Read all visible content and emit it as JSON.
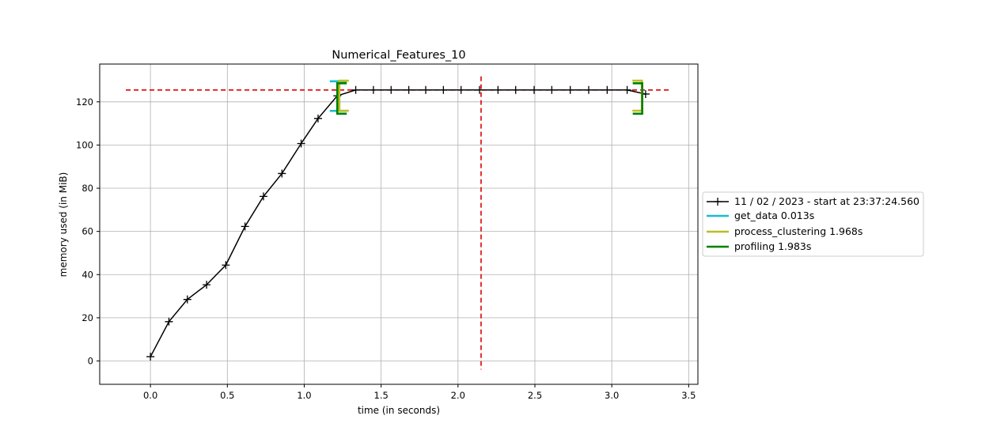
{
  "chart_data": {
    "type": "line",
    "title": "Numerical_Features_10",
    "xlabel": "time (in seconds)",
    "ylabel": "memory used (in MiB)",
    "xlim": [
      -0.33,
      3.56
    ],
    "ylim": [
      -10.8,
      137.5
    ],
    "xticks": [
      0.0,
      0.5,
      1.0,
      1.5,
      2.0,
      2.5,
      3.0,
      3.5
    ],
    "xtick_labels": [
      "0.0",
      "0.5",
      "1.0",
      "1.5",
      "2.0",
      "2.5",
      "3.0",
      "3.5"
    ],
    "yticks": [
      0,
      20,
      40,
      60,
      80,
      100,
      120
    ],
    "ytick_labels": [
      "0",
      "20",
      "40",
      "60",
      "80",
      "100",
      "120"
    ],
    "grid": true,
    "legend_position": "outside-right",
    "series": [
      {
        "name": "11 / 02 / 2023 - start at 23:37:24.560",
        "color": "#000000",
        "marker": "+",
        "x": [
          0.0,
          0.12,
          0.24,
          0.365,
          0.49,
          0.615,
          0.735,
          0.855,
          0.98,
          1.09,
          1.215,
          1.335,
          1.45,
          1.565,
          1.68,
          1.79,
          1.905,
          2.02,
          2.14,
          2.26,
          2.375,
          2.495,
          2.61,
          2.73,
          2.85,
          2.97,
          3.1,
          3.22
        ],
        "y": [
          2.0,
          18.2,
          28.5,
          35.3,
          44.4,
          62.3,
          76.2,
          86.8,
          100.7,
          112.3,
          122.8,
          125.5,
          125.5,
          125.5,
          125.5,
          125.5,
          125.5,
          125.5,
          125.5,
          125.5,
          125.5,
          125.5,
          125.5,
          125.5,
          125.5,
          125.5,
          125.5,
          123.6
        ]
      }
    ],
    "reference_lines": {
      "color": "#dd0000",
      "horizontal": {
        "y": 125.5,
        "xmin": -0.16,
        "xmax": 3.39
      },
      "vertical": {
        "x": 2.15,
        "ymin": -4.0,
        "ymax": 131.8
      }
    },
    "brackets": [
      {
        "name": "get_data 0.013s",
        "color": "#17becf",
        "x_start": 1.215,
        "x_end": 1.228,
        "y_low": 115.8,
        "y_high": 129.5
      },
      {
        "name": "process_clustering 1.968s",
        "color": "#bcbd22",
        "x_start": 1.228,
        "x_end": 3.196,
        "y_low": 115.9,
        "y_high": 129.8
      },
      {
        "name": "profiling 1.983s",
        "color": "#008000",
        "x_start": 1.215,
        "x_end": 3.198,
        "y_low": 114.5,
        "y_high": 128.6
      }
    ]
  }
}
